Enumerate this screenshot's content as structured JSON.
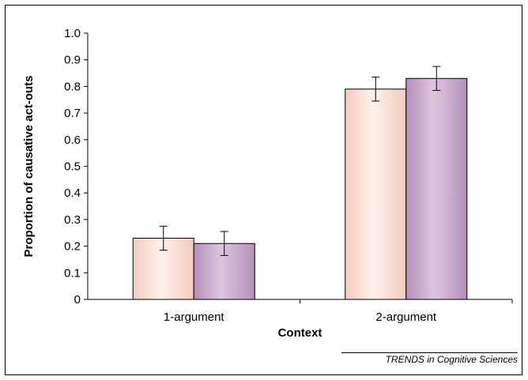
{
  "chart_data": {
    "type": "bar",
    "categories": [
      "1-argument",
      "2-argument"
    ],
    "series": [
      {
        "values": [
          0.23,
          0.79
        ],
        "error": [
          0.045,
          0.045
        ],
        "color": "#f7dccf"
      },
      {
        "values": [
          0.21,
          0.83
        ],
        "error": [
          0.045,
          0.045
        ],
        "color": "#c9a8cc"
      }
    ],
    "title": "",
    "xlabel": "Context",
    "ylabel": "Proportion of causative act-outs",
    "ylim": [
      0,
      1.0
    ],
    "yticks": [
      "0",
      "0.1",
      "0.2",
      "0.3",
      "0.4",
      "0.5",
      "0.6",
      "0.7",
      "0.8",
      "0.9",
      "1.0"
    ],
    "grid": false,
    "legend": "none"
  },
  "source": "TRENDS in Cognitive Sciences"
}
